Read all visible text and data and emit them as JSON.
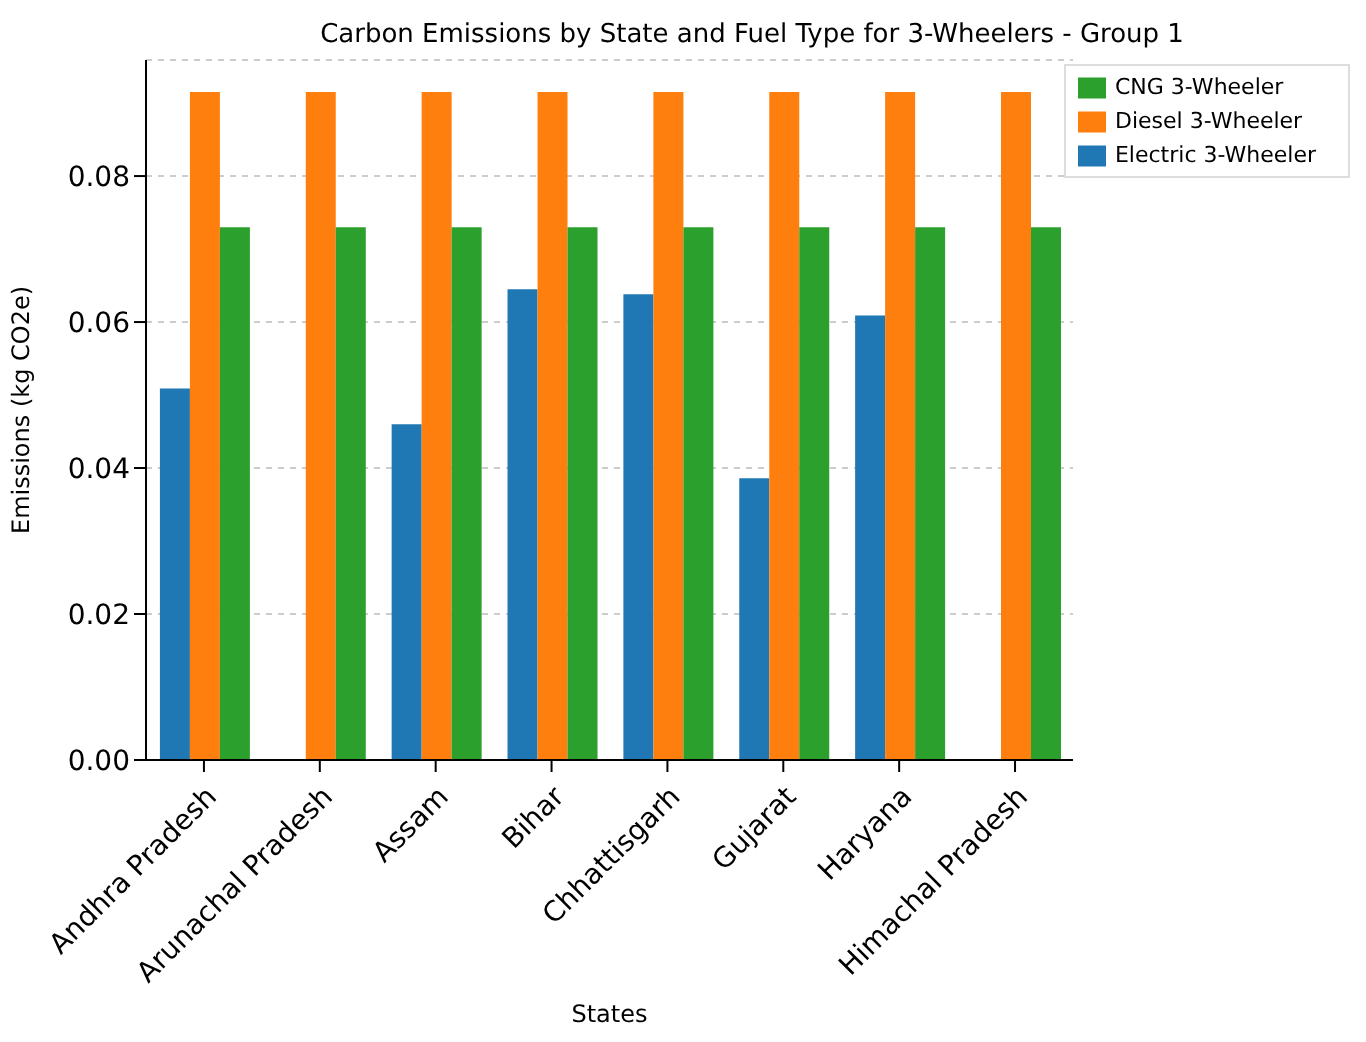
{
  "chart_data": {
    "type": "bar",
    "title": "Carbon Emissions by State and Fuel Type for 3-Wheelers - Group 1",
    "xlabel": "States",
    "ylabel": "Emissions (kg CO2e)",
    "categories": [
      "Andhra Pradesh",
      "Arunachal Pradesh",
      "Assam",
      "Bihar",
      "Chhattisgarh",
      "Gujarat",
      "Haryana",
      "Himachal Pradesh"
    ],
    "series": [
      {
        "name": "Electric 3-Wheeler",
        "color": "#1f77b4",
        "values": [
          0.0509,
          null,
          0.046,
          0.0645,
          0.0638,
          0.0386,
          0.0609,
          null
        ]
      },
      {
        "name": "Diesel 3-Wheeler",
        "color": "#ff7f0e",
        "values": [
          0.0915,
          0.0915,
          0.0915,
          0.0915,
          0.0915,
          0.0915,
          0.0915,
          0.0915
        ]
      },
      {
        "name": "CNG 3-Wheeler",
        "color": "#2ca02c",
        "values": [
          0.073,
          0.073,
          0.073,
          0.073,
          0.073,
          0.073,
          0.073,
          0.073
        ]
      }
    ],
    "ylim": [
      0,
      0.0959
    ],
    "yticks": [
      {
        "value": 0,
        "label": "0.00"
      },
      {
        "value": 0.02,
        "label": "0.02"
      },
      {
        "value": 0.04,
        "label": "0.04"
      },
      {
        "value": 0.06,
        "label": "0.06"
      },
      {
        "value": 0.08,
        "label": "0.08"
      }
    ],
    "grid": "y",
    "legend": "top right"
  }
}
